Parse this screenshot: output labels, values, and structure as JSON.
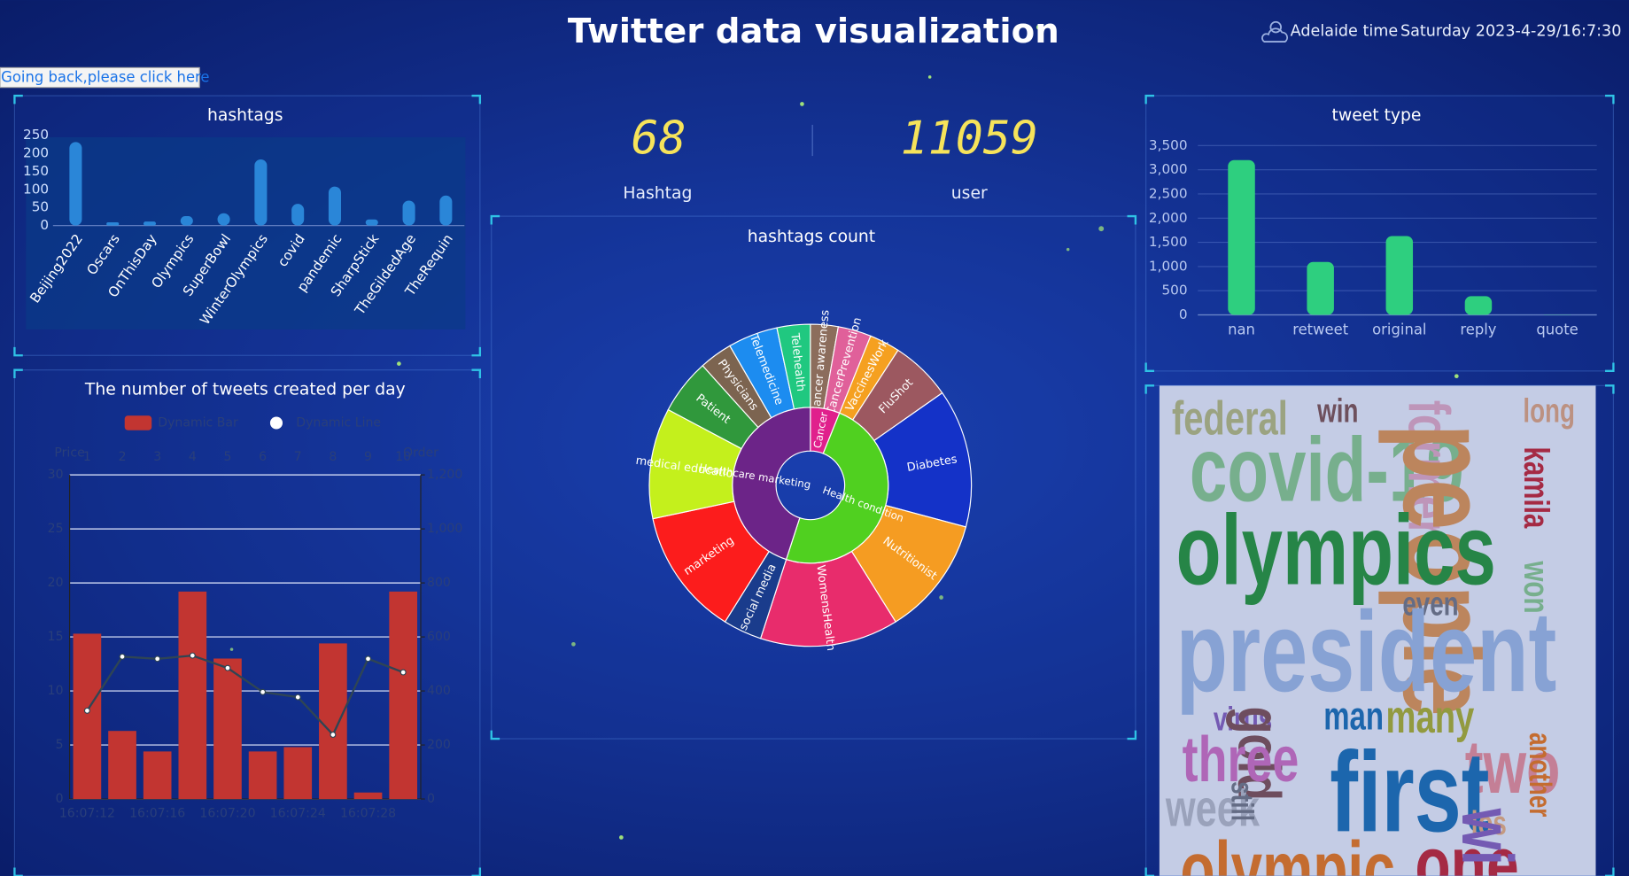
{
  "header": {
    "title": "Twitter data visualization",
    "time_label": "Adelaide time",
    "datetime": "Saturday 2023-4-29/16:7:30"
  },
  "back_link": "Going back,please click here",
  "stats": [
    {
      "value": 68,
      "label": "Hashtag"
    },
    {
      "value": 11059,
      "label": "user"
    }
  ],
  "chart_data": [
    {
      "type": "bar",
      "title": "hashtags",
      "categories": [
        "Beijing2022",
        "Oscars",
        "OnThisDay",
        "Olympics",
        "SuperBowl",
        "WinterOlympics",
        "covid",
        "pandemic",
        "SharpStick",
        "TheGildedAge",
        "TheRequin"
      ],
      "values": [
        231,
        9,
        11,
        26,
        34,
        183,
        60,
        108,
        17,
        69,
        83
      ],
      "color": "#2a86d8",
      "ylim": [
        0,
        250
      ],
      "yticks": [
        0,
        50,
        100,
        150,
        200,
        250
      ],
      "grid": false
    },
    {
      "type": "bar",
      "title": "tweet type",
      "categories": [
        "nan",
        "retweet",
        "original",
        "reply",
        "quote"
      ],
      "values": [
        3200,
        1095,
        1630,
        386,
        5
      ],
      "color": "#2ecf7f",
      "ylim": [
        0,
        3500
      ],
      "yticks": [
        0,
        500,
        {
          "value": 1000,
          "label": "1,000"
        },
        {
          "value": 1500,
          "label": "1,500"
        },
        {
          "value": 2000,
          "label": "2,000"
        },
        {
          "value": 2500,
          "label": "2,500"
        },
        {
          "value": 3000,
          "label": "3,000"
        },
        {
          "value": 3500,
          "label": "3,500"
        }
      ],
      "grid": true
    },
    {
      "type": "sunburst",
      "title": "hashtags count",
      "data": [
        {
          "name": "Cancer",
          "color": "#e0208c",
          "children": [
            {
              "name": "Cancer awareness",
              "value": 10,
              "color": "#8c6d5c"
            },
            {
              "name": "CancerPrevention",
              "value": 12,
              "color": "#e0609a"
            }
          ]
        },
        {
          "name": "Health condition",
          "color": "#50d020",
          "children": [
            {
              "name": "VaccinesWork",
              "value": 11,
              "color": "#f5a020"
            },
            {
              "name": "FluShot",
              "value": 22,
              "color": "#9c5860"
            },
            {
              "name": "Diabetes",
              "value": 50,
              "color": "#1432c8"
            },
            {
              "name": "Nutritionist",
              "value": 43,
              "color": "#f59c22"
            },
            {
              "name": "WomensHealth",
              "value": 50,
              "color": "#e82c6c"
            }
          ]
        },
        {
          "name": "Healthcare marketing",
          "color": "#6c2488",
          "children": [
            {
              "name": "social media",
              "value": 14,
              "color": "#1a3c8c"
            },
            {
              "name": "marketing",
              "value": 46,
              "color": "#fc1c1c"
            },
            {
              "name": "medical education",
              "value": 40,
              "color": "#c4f01c"
            },
            {
              "name": "Patient",
              "value": 20,
              "color": "#30983c"
            },
            {
              "name": "Physicians",
              "value": 12,
              "color": "#7c6450"
            },
            {
              "name": "Telemedicine",
              "value": 18,
              "color": "#1c8cf0"
            },
            {
              "name": "Telehealth",
              "value": 12,
              "color": "#20c880"
            }
          ]
        }
      ]
    },
    {
      "type": "combo",
      "title": "The number of tweets created per day",
      "categories": [
        "16:07:12",
        null,
        "16:07:16",
        null,
        "16:07:20",
        null,
        "16:07:24",
        null,
        "16:07:28",
        null
      ],
      "x2_categories": [
        1,
        2,
        3,
        4,
        5,
        6,
        7,
        8,
        9,
        10
      ],
      "ylabel": "Price",
      "y2label": "Order",
      "ylim": [
        0,
        30
      ],
      "yticks": [
        0,
        5,
        10,
        15,
        20,
        25,
        30
      ],
      "y2lim": [
        0,
        1200
      ],
      "y2ticks": [
        0,
        200,
        400,
        600,
        800,
        {
          "value": 1000,
          "label": "1,000"
        },
        {
          "value": 1200,
          "label": "1,200"
        }
      ],
      "grid": true,
      "series": [
        {
          "name": "Dynamic Bar",
          "type": "bar",
          "color": "#c23531",
          "values": [
            15.3,
            6.3,
            4.4,
            19.2,
            13.0,
            4.4,
            4.8,
            14.4,
            0.6,
            19.2
          ]
        },
        {
          "name": "Dynamic Line",
          "type": "line",
          "axis": "y2",
          "color": "#2f4554",
          "values": [
            327,
            527,
            519,
            531,
            485,
            396,
            377,
            238,
            519,
            469
          ]
        }
      ]
    }
  ],
  "wordcloud": [
    {
      "text": "federal",
      "color": "#c8c87a"
    },
    {
      "text": "win",
      "color": "#8c5a4a"
    },
    {
      "text": "long",
      "color": "#f5b07a"
    },
    {
      "text": "covid-19",
      "color": "#98d88a"
    },
    {
      "text": "former",
      "color": "#f7b6c4"
    },
    {
      "text": "people",
      "color": "#f5a04a"
    },
    {
      "text": "kamila",
      "color": "#d62728"
    },
    {
      "text": "won",
      "color": "#98d88a"
    },
    {
      "text": "olympics",
      "color": "#2ca02c"
    },
    {
      "text": "even",
      "color": "#7f7f7f"
    },
    {
      "text": "president",
      "color": "#aec7e8"
    },
    {
      "text": "virus",
      "color": "#9467bd"
    },
    {
      "text": "man",
      "color": "#1f77b4"
    },
    {
      "text": "many",
      "color": "#bcbd22"
    },
    {
      "text": "gold",
      "color": "#8c564b"
    },
    {
      "text": "three",
      "color": "#e377c2"
    },
    {
      "text": "two",
      "color": "#ff9896"
    },
    {
      "text": "another",
      "color": "#ff7f0e"
    },
    {
      "text": "first",
      "color": "#1f77b4"
    },
    {
      "text": "week",
      "color": "#c7c7c7"
    },
    {
      "text": "still",
      "color": "#7f7f7f"
    },
    {
      "text": "los",
      "color": "#ffbb78"
    },
    {
      "text": "olympic",
      "color": "#ff7f0e"
    },
    {
      "text": "one",
      "color": "#d62728"
    },
    {
      "text": "wi",
      "color": "#9467bd"
    }
  ]
}
